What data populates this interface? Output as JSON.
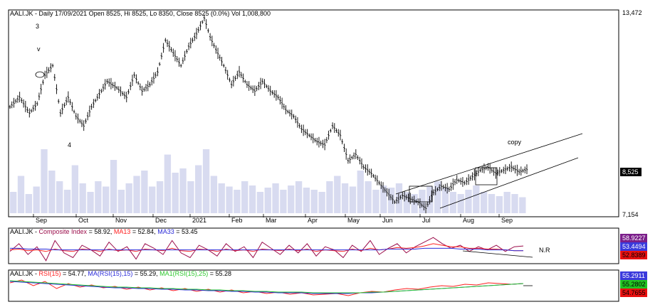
{
  "colors": {
    "price": "#000000",
    "volume": "#d8dbf0",
    "composite": "#9b0c4a",
    "ma13": "#ff2020",
    "ma33": "#2a2ad8",
    "rsi": "#ff2020",
    "rsi_ma": "#2a2ad8",
    "rsi_ma1": "#2ec82e",
    "badge_blue": "#3a3adc",
    "badge_green": "#22c422",
    "badge_red": "#e81010",
    "badge_purple": "#7b1e8a",
    "panel_border": "#000000"
  },
  "chart_data": [
    {
      "type": "bar",
      "panel": "price",
      "header": {
        "ticker": "AALI.JK",
        "interval": "Daily",
        "date": "17/09/2021",
        "open_label": "Open",
        "open": "8525",
        "high_label": "Hi",
        "high": "8525",
        "low_label": "Lo",
        "low": "8350",
        "close_label": "Close",
        "close": "8525",
        "change": "(0.0%)",
        "vol_label": "Vol",
        "volume": "1,008,800"
      },
      "yaxis": {
        "max_label": "13,472",
        "min_label": "7,154",
        "last_label": "8,525",
        "ylim": [
          7154,
          13472
        ]
      },
      "xaxis": {
        "months": [
          "Sep",
          "Oct",
          "Nov",
          "Dec",
          "2021",
          "Feb",
          "Mar",
          "Apr",
          "May",
          "Jun",
          "Jul",
          "Aug",
          "Sep"
        ]
      },
      "annotations": {
        "wave_3": "3",
        "wave_v": "v",
        "wave_4": "4",
        "copy": "copy"
      },
      "price_path": [
        [
          0,
          10500
        ],
        [
          5,
          10800
        ],
        [
          10,
          10300
        ],
        [
          14,
          10600
        ],
        [
          18,
          11500
        ],
        [
          22,
          11800
        ],
        [
          26,
          10300
        ],
        [
          30,
          10800
        ],
        [
          34,
          10200
        ],
        [
          38,
          9900
        ],
        [
          42,
          10500
        ],
        [
          46,
          10900
        ],
        [
          50,
          11300
        ],
        [
          55,
          11100
        ],
        [
          60,
          10800
        ],
        [
          64,
          11500
        ],
        [
          68,
          11000
        ],
        [
          72,
          11200
        ],
        [
          76,
          11600
        ],
        [
          80,
          12600
        ],
        [
          84,
          12200
        ],
        [
          88,
          11800
        ],
        [
          92,
          12400
        ],
        [
          96,
          12800
        ],
        [
          100,
          13300
        ],
        [
          103,
          12700
        ],
        [
          106,
          12300
        ],
        [
          110,
          11800
        ],
        [
          114,
          11200
        ],
        [
          118,
          11600
        ],
        [
          122,
          11200
        ],
        [
          126,
          11000
        ],
        [
          130,
          11300
        ],
        [
          134,
          11000
        ],
        [
          138,
          10800
        ],
        [
          142,
          10400
        ],
        [
          146,
          10200
        ],
        [
          150,
          9800
        ],
        [
          154,
          9600
        ],
        [
          158,
          9400
        ],
        [
          162,
          9300
        ],
        [
          166,
          9900
        ],
        [
          170,
          9600
        ],
        [
          174,
          8800
        ],
        [
          178,
          9000
        ],
        [
          182,
          8600
        ],
        [
          186,
          8400
        ],
        [
          190,
          8100
        ],
        [
          194,
          7800
        ],
        [
          198,
          7500
        ],
        [
          202,
          7700
        ],
        [
          206,
          7600
        ],
        [
          210,
          7500
        ],
        [
          214,
          7300
        ],
        [
          218,
          7800
        ],
        [
          222,
          8000
        ],
        [
          226,
          7900
        ],
        [
          230,
          8200
        ],
        [
          234,
          8100
        ],
        [
          238,
          8300
        ],
        [
          242,
          8500
        ],
        [
          246,
          8600
        ],
        [
          250,
          8400
        ],
        [
          254,
          8500
        ],
        [
          258,
          8600
        ],
        [
          262,
          8450
        ],
        [
          266,
          8525
        ]
      ],
      "volume_path": [
        20,
        35,
        18,
        25,
        60,
        40,
        30,
        22,
        45,
        28,
        20,
        30,
        25,
        50,
        22,
        28,
        35,
        40,
        25,
        30,
        55,
        38,
        42,
        30,
        45,
        60,
        35,
        28,
        25,
        22,
        30,
        26,
        20,
        24,
        28,
        22,
        26,
        30,
        24,
        22,
        20,
        30,
        35,
        28,
        25,
        40,
        30,
        22,
        26,
        24,
        28,
        20,
        18,
        22,
        25,
        30,
        24,
        20,
        18,
        22,
        26,
        20,
        18,
        16,
        20,
        18,
        15
      ]
    },
    {
      "type": "line",
      "panel": "composite",
      "header": {
        "ticker": "AALI.JK",
        "name_label": "Composite Index",
        "value": "58.92",
        "ma13_label": "MA13",
        "ma13": "52.84",
        "ma33_label": "MA33",
        "ma33": "53.45"
      },
      "badges": [
        "58.9227",
        "53.4494",
        "52.8389"
      ],
      "annotation": "N.R",
      "series": [
        {
          "name": "Composite Index",
          "values": [
            52,
            62,
            48,
            58,
            40,
            66,
            50,
            44,
            60,
            54,
            46,
            64,
            52,
            58,
            42,
            62,
            56,
            48,
            66,
            50,
            44,
            60,
            54,
            46,
            62,
            52,
            58,
            44,
            64,
            56,
            48,
            60,
            50,
            62,
            46,
            58,
            54,
            44,
            60,
            52,
            66,
            48,
            56,
            62,
            50,
            58,
            64,
            70,
            62,
            56,
            60,
            52,
            58,
            54,
            60,
            52,
            58,
            59
          ]
        },
        {
          "name": "MA13",
          "values": [
            54,
            55,
            53,
            54,
            52,
            55,
            53,
            52,
            55,
            54,
            52,
            55,
            53,
            54,
            52,
            55,
            54,
            53,
            56,
            53,
            52,
            55,
            54,
            52,
            55,
            53,
            54,
            52,
            55,
            54,
            53,
            55,
            53,
            55,
            52,
            54,
            53,
            52,
            55,
            53,
            56,
            54,
            55,
            57,
            56,
            57,
            59,
            62,
            60,
            58,
            58,
            56,
            56,
            55,
            55,
            54,
            53,
            53
          ]
        },
        {
          "name": "MA33",
          "values": [
            56,
            56,
            55,
            55,
            55,
            54,
            54,
            54,
            54,
            54,
            54,
            54,
            54,
            54,
            54,
            54,
            54,
            54,
            54,
            54,
            54,
            54,
            54,
            54,
            54,
            54,
            54,
            54,
            54,
            54,
            54,
            54,
            54,
            54,
            54,
            54,
            54,
            54,
            54,
            54,
            54,
            54,
            55,
            55,
            55,
            55,
            56,
            56,
            56,
            56,
            55,
            55,
            55,
            54,
            54,
            54,
            53,
            53
          ]
        }
      ]
    },
    {
      "type": "line",
      "panel": "rsi",
      "header": {
        "ticker": "AALI.JK",
        "rsi_label": "RSI(15)",
        "rsi": "54.77",
        "ma_label": "MA(RSI(15),15)",
        "ma": "55.29",
        "ma1_label": "MA1(RSI(15),25)",
        "ma1": "55.28"
      },
      "badges": [
        "55.2911",
        "55.2802",
        "54.7655"
      ],
      "series": [
        {
          "name": "RSI(15)",
          "values": [
            56,
            60,
            52,
            58,
            48,
            55,
            50,
            53,
            49,
            51,
            47,
            50,
            46,
            49,
            45,
            48,
            44,
            47,
            43,
            46,
            42,
            44,
            41,
            43,
            40,
            42,
            39,
            40,
            41,
            38,
            42,
            44,
            43,
            46,
            48,
            47,
            50,
            52,
            51,
            54,
            53,
            56,
            55,
            54,
            55
          ]
        },
        {
          "name": "MA(RSI(15),15)",
          "values": [
            58,
            57,
            56,
            55,
            54,
            53,
            52,
            51,
            50,
            49,
            49,
            48,
            48,
            47,
            47,
            46,
            46,
            45,
            45,
            44,
            44,
            43,
            43,
            42,
            42,
            42,
            41,
            41,
            41,
            41,
            42,
            42,
            43,
            44,
            45,
            46,
            47,
            48,
            49,
            50,
            51,
            52,
            53,
            54,
            55
          ]
        },
        {
          "name": "MA1(RSI(15),25)",
          "values": [
            59,
            58,
            57,
            56,
            55,
            54,
            53,
            52,
            51,
            50,
            50,
            49,
            49,
            48,
            48,
            47,
            47,
            46,
            46,
            45,
            45,
            44,
            44,
            43,
            43,
            43,
            42,
            42,
            42,
            42,
            42,
            43,
            43,
            44,
            45,
            46,
            47,
            48,
            49,
            50,
            51,
            52,
            53,
            54,
            55
          ]
        }
      ]
    }
  ]
}
